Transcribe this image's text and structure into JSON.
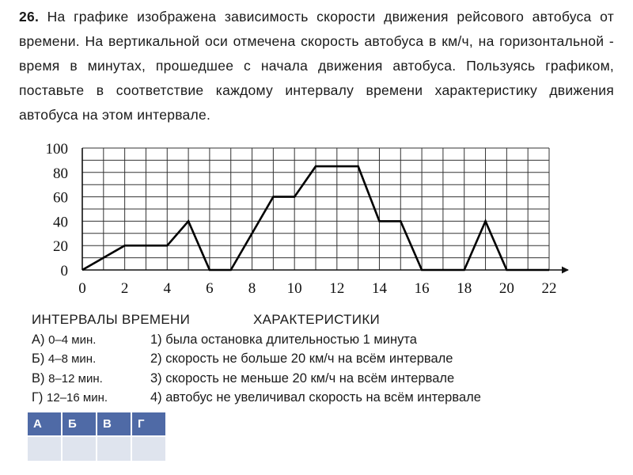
{
  "problem": {
    "number": "26.",
    "text": "На графике изображена зависимость скорости движения рейсового автобуса от времени. На вертикальной оси отмечена скорость автобуса в км/ч, на горизонтальной - время в минутах, прошедшее с начала движения автобуса. Пользуясь графиком, поставьте в соответствие каждому интервалу времени характеристику движения автобуса на этом интервале."
  },
  "chart_data": {
    "type": "line",
    "title": "",
    "xlabel": "",
    "ylabel": "",
    "x_ticks": [
      "0",
      "2",
      "4",
      "6",
      "8",
      "10",
      "12",
      "14",
      "16",
      "18",
      "20",
      "22"
    ],
    "y_ticks": [
      "0",
      "20",
      "40",
      "60",
      "80",
      "100"
    ],
    "xlim": [
      0,
      22
    ],
    "ylim": [
      0,
      100
    ],
    "grid": true,
    "series": [
      {
        "x": [
          0,
          2,
          4,
          5,
          6,
          7,
          9,
          10,
          11,
          13,
          14,
          15,
          16,
          18,
          19,
          20,
          22
        ],
        "y": [
          0,
          20,
          20,
          40,
          0,
          0,
          60,
          60,
          85,
          85,
          40,
          40,
          0,
          0,
          40,
          0,
          0
        ]
      }
    ]
  },
  "intervals": {
    "heading_left": "ИНТЕРВАЛЫ ВРЕМЕНИ",
    "heading_right": "ХАРАКТЕРИСТИКИ",
    "items": [
      {
        "letter": "А)",
        "range": "0–4 мин.",
        "char": "1) была остановка длительностью 1 минута"
      },
      {
        "letter": "Б)",
        "range": "4–8 мин.",
        "char": "2) скорость не больше 20 км/ч на всём интервале"
      },
      {
        "letter": "В)",
        "range": "8–12 мин.",
        "char": "3) скорость не меньше 20 км/ч на всём интервале"
      },
      {
        "letter": "Г)",
        "range": "12–16 мин.",
        "char": "4) автобус не увеличивал скорость на всём интервале"
      }
    ]
  },
  "answer_table": {
    "headers": [
      "А",
      "Б",
      "В",
      "Г"
    ]
  }
}
